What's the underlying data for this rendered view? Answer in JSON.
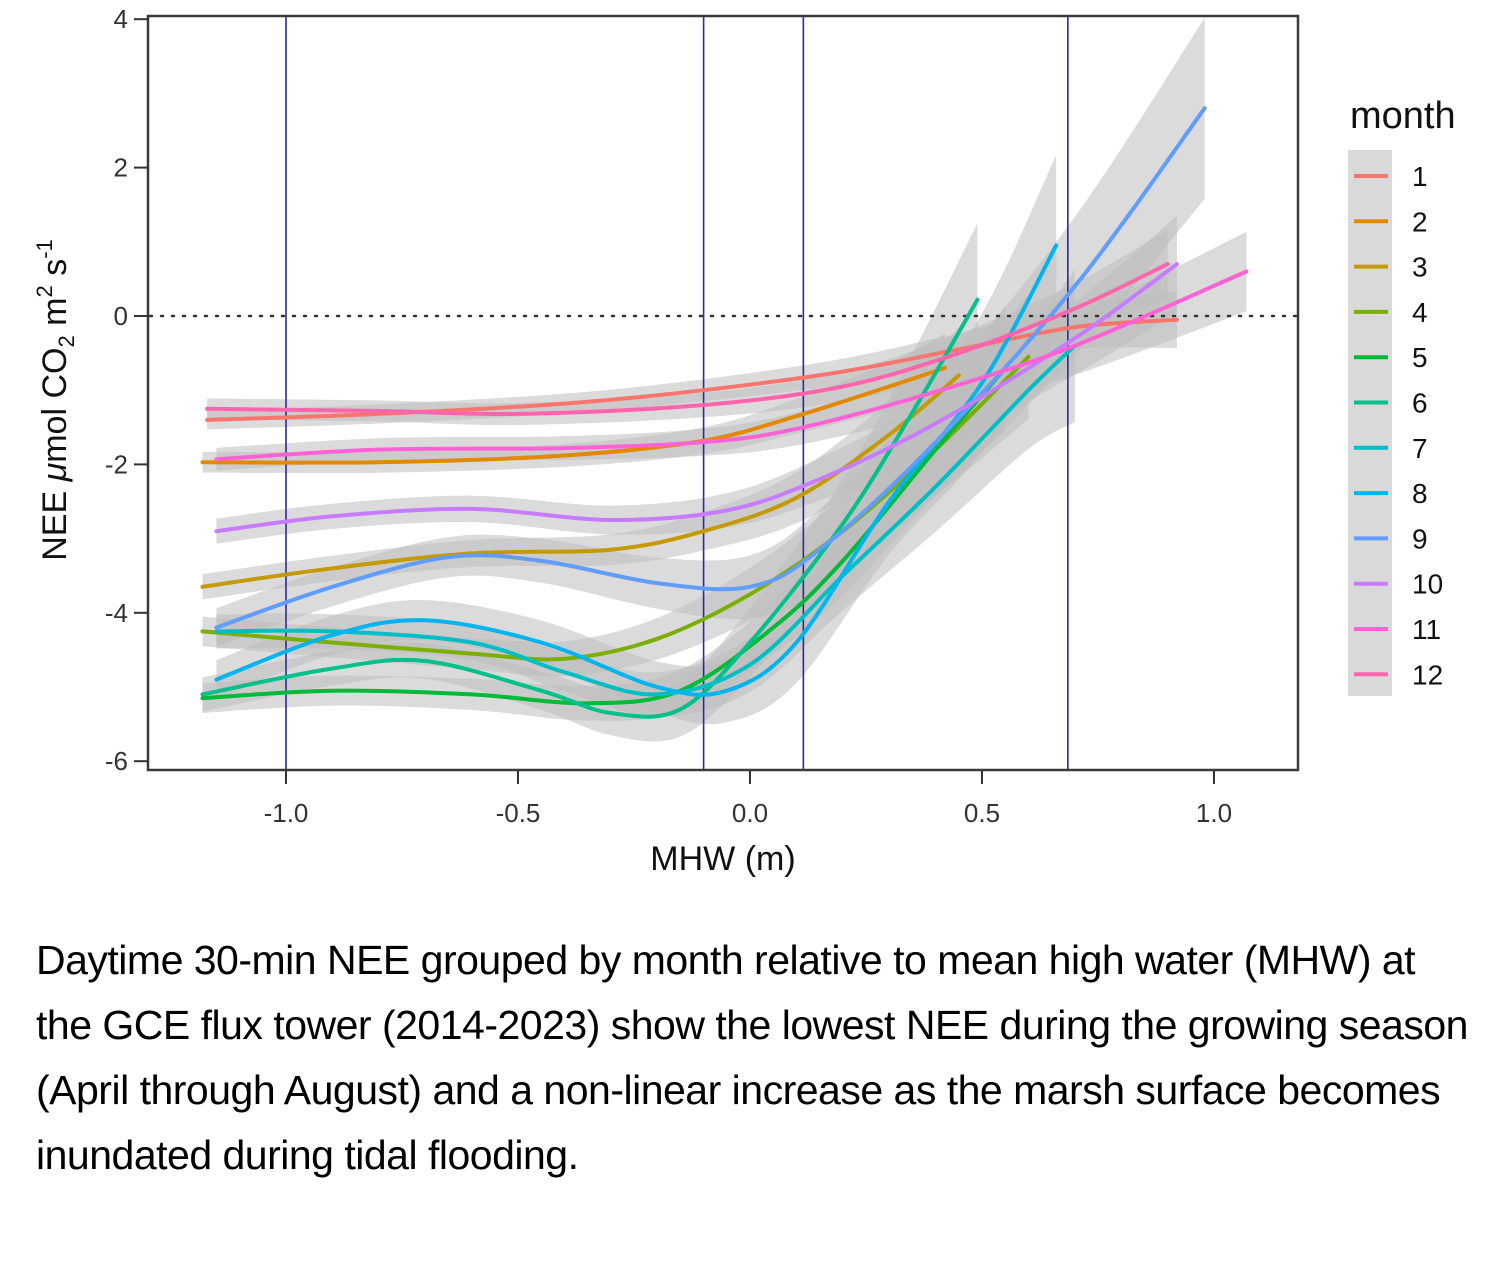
{
  "chart_data": {
    "type": "line",
    "title": "",
    "xlabel": "MHW (m)",
    "ylabel": {
      "prefix": "NEE ",
      "mu": "μ",
      "mol": "mol CO",
      "sub2": "2",
      "m": " m",
      "sup2": "2",
      "s": " s",
      "supneg1": "-1"
    },
    "xlim": [
      -1.3,
      1.18
    ],
    "ylim": [
      -6.1,
      4.0
    ],
    "xticks": [
      -1.0,
      -0.5,
      0.0,
      0.5,
      1.0
    ],
    "xtick_labels": [
      "-1.0",
      "-0.5",
      "0.0",
      "0.5",
      "1.0"
    ],
    "yticks": [
      -6,
      -4,
      -2,
      0,
      2,
      4
    ],
    "ytick_labels": [
      "-6",
      "-4",
      "-2",
      "0",
      "2",
      "4"
    ],
    "reference_hline": {
      "y": 0,
      "style": "dotted",
      "color": "#333333"
    },
    "reference_vlines": {
      "x": [
        -1.0,
        -0.1,
        0.115,
        0.685
      ],
      "color": "#2b2b9a"
    },
    "grid": false,
    "confidence_band_color": "#bdbdbd",
    "legend": {
      "title": "month",
      "position": "right"
    },
    "series": [
      {
        "name": "1",
        "color": "#F8766D",
        "x": [
          -1.17,
          -0.8,
          -0.4,
          -0.1,
          0.2,
          0.45,
          0.7,
          0.92
        ],
        "y": [
          -1.4,
          -1.32,
          -1.18,
          -1.0,
          -0.75,
          -0.45,
          -0.15,
          -0.05
        ],
        "band": 0.08
      },
      {
        "name": "2",
        "color": "#E38900",
        "x": [
          -1.18,
          -0.8,
          -0.4,
          -0.1,
          0.1,
          0.3,
          0.42
        ],
        "y": [
          -1.97,
          -1.97,
          -1.88,
          -1.68,
          -1.35,
          -0.95,
          -0.7
        ],
        "band": 0.1
      },
      {
        "name": "3",
        "color": "#C49A00",
        "x": [
          -1.18,
          -0.9,
          -0.6,
          -0.3,
          -0.1,
          0.1,
          0.3,
          0.45
        ],
        "y": [
          -3.65,
          -3.4,
          -3.2,
          -3.15,
          -2.9,
          -2.45,
          -1.6,
          -0.8
        ],
        "band": 0.15
      },
      {
        "name": "4",
        "color": "#7CAE00",
        "x": [
          -1.18,
          -0.9,
          -0.6,
          -0.4,
          -0.2,
          0.0,
          0.2,
          0.4,
          0.6
        ],
        "y": [
          -4.25,
          -4.4,
          -4.55,
          -4.62,
          -4.35,
          -3.75,
          -2.9,
          -1.8,
          -0.55
        ],
        "band": 0.2
      },
      {
        "name": "5",
        "color": "#00BA38",
        "x": [
          -1.18,
          -0.9,
          -0.6,
          -0.35,
          -0.15,
          0.05,
          0.2,
          0.4,
          0.55
        ],
        "y": [
          -5.15,
          -5.05,
          -5.1,
          -5.22,
          -5.05,
          -4.2,
          -3.3,
          -1.8,
          -0.7
        ],
        "band": 0.2
      },
      {
        "name": "6",
        "color": "#00C08B",
        "x": [
          -1.18,
          -0.9,
          -0.7,
          -0.45,
          -0.3,
          -0.15,
          0.0,
          0.2,
          0.35,
          0.49
        ],
        "y": [
          -5.1,
          -4.75,
          -4.65,
          -5.05,
          -5.35,
          -5.3,
          -4.4,
          -2.8,
          -1.3,
          0.22
        ],
        "band": 0.25
      },
      {
        "name": "7",
        "color": "#00BFC4",
        "x": [
          -1.15,
          -0.9,
          -0.6,
          -0.4,
          -0.2,
          0.0,
          0.2,
          0.4,
          0.6,
          0.7
        ],
        "y": [
          -4.25,
          -4.25,
          -4.4,
          -4.8,
          -5.1,
          -4.7,
          -3.5,
          -2.3,
          -1.0,
          -0.4
        ],
        "band": 0.25
      },
      {
        "name": "8",
        "color": "#00B4EF",
        "x": [
          -1.15,
          -0.9,
          -0.7,
          -0.45,
          -0.2,
          -0.05,
          0.1,
          0.3,
          0.5,
          0.66
        ],
        "y": [
          -4.9,
          -4.3,
          -4.1,
          -4.4,
          -5.0,
          -5.05,
          -4.4,
          -2.5,
          -0.9,
          0.95
        ],
        "band": 0.3
      },
      {
        "name": "9",
        "color": "#619CFF",
        "x": [
          -1.15,
          -0.9,
          -0.65,
          -0.45,
          -0.2,
          0.0,
          0.15,
          0.4,
          0.7,
          0.98
        ],
        "y": [
          -4.2,
          -3.65,
          -3.25,
          -3.3,
          -3.6,
          -3.65,
          -3.15,
          -1.7,
          0.4,
          2.8
        ],
        "band": 0.3
      },
      {
        "name": "10",
        "color": "#C77CFF",
        "x": [
          -1.15,
          -0.9,
          -0.6,
          -0.3,
          -0.05,
          0.15,
          0.4,
          0.7,
          0.92
        ],
        "y": [
          -2.9,
          -2.7,
          -2.6,
          -2.75,
          -2.62,
          -2.2,
          -1.45,
          -0.3,
          0.7
        ],
        "band": 0.15
      },
      {
        "name": "11",
        "color": "#FF62D4",
        "x": [
          -1.15,
          -0.8,
          -0.4,
          -0.1,
          0.1,
          0.4,
          0.7,
          1.07
        ],
        "y": [
          -1.93,
          -1.8,
          -1.78,
          -1.7,
          -1.52,
          -1.02,
          -0.4,
          0.6
        ],
        "band": 0.12
      },
      {
        "name": "12",
        "color": "#FF65AC",
        "x": [
          -1.17,
          -0.8,
          -0.5,
          -0.1,
          0.2,
          0.45,
          0.7,
          0.9
        ],
        "y": [
          -1.25,
          -1.28,
          -1.32,
          -1.2,
          -0.95,
          -0.5,
          0.1,
          0.7
        ],
        "band": 0.1
      }
    ]
  },
  "caption": "Daytime 30-min NEE grouped by month relative to mean high water (MHW) at the GCE flux tower (2014-2023) show the lowest NEE during the growing season (April through August) and a non-linear increase as the marsh surface becomes inundated during tidal flooding."
}
